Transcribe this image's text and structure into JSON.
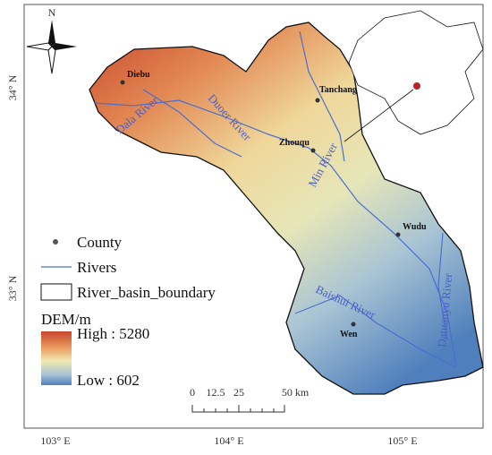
{
  "north_arrow": "N",
  "axes": {
    "x_labels": [
      "103° E",
      "104° E",
      "105° E"
    ],
    "y_labels": [
      "34° N",
      "33° N"
    ]
  },
  "counties": [
    "Diebu",
    "Tanchang",
    "Zhouqu",
    "Wudu",
    "Wen"
  ],
  "rivers": [
    "Dala River",
    "Duoer River",
    "Min River",
    "Baishui River",
    "Datuanyu River"
  ],
  "legend": {
    "items": [
      "County",
      "Rivers",
      "River_basin_boundary"
    ],
    "dem_title": "DEM/m",
    "high_label": "High : 5280",
    "low_label": "Low : 602"
  },
  "scale_bar": {
    "labels": [
      "0",
      "12.5",
      "25",
      "50 km"
    ]
  }
}
